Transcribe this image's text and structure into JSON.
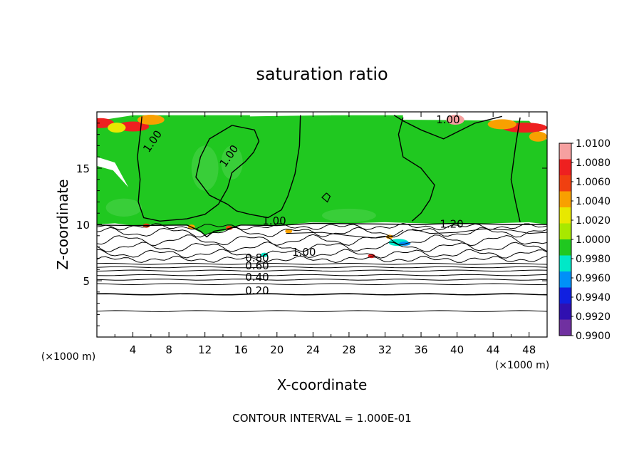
{
  "chart_data": {
    "type": "heatmap",
    "title": "saturation ratio",
    "xlabel": "X-coordinate",
    "ylabel": "Z-coordinate",
    "x_unit": "(×1000 m)",
    "z_unit": "(×1000 m)",
    "xlim": [
      0,
      50
    ],
    "ylim": [
      0,
      20
    ],
    "x_ticks": [
      4,
      8,
      12,
      16,
      20,
      24,
      28,
      32,
      36,
      40,
      44,
      48
    ],
    "y_ticks": [
      5,
      10,
      15
    ],
    "colorbar": {
      "levels": [
        "1.0100",
        "1.0080",
        "1.0060",
        "1.0040",
        "1.0020",
        "1.0000",
        "0.9980",
        "0.9960",
        "0.9940",
        "0.9920",
        "0.9900"
      ],
      "colors": [
        "#f6a0a0",
        "#ee2020",
        "#f04010",
        "#f8a000",
        "#e8e800",
        "#a8e800",
        "#20c820",
        "#00e8c8",
        "#0090f8",
        "#1020e0",
        "#3010b0",
        "#7030a0"
      ]
    },
    "contour_labels": [
      {
        "text": "1.00",
        "x": 6.5,
        "z": 17.2
      },
      {
        "text": "1.00",
        "x": 15.0,
        "z": 15.9
      },
      {
        "text": "1.00",
        "x": 39.0,
        "z": 19.0
      },
      {
        "text": "1.00",
        "x": 19.7,
        "z": 10.0
      },
      {
        "text": "1.20",
        "x": 39.4,
        "z": 9.7
      },
      {
        "text": "1.00",
        "x": 23.0,
        "z": 7.2
      },
      {
        "text": "0.80",
        "x": 17.8,
        "z": 6.7
      },
      {
        "text": "0.60",
        "x": 17.8,
        "z": 6.0
      },
      {
        "text": "0.40",
        "x": 17.8,
        "z": 5.0
      },
      {
        "text": "0.20",
        "x": 17.8,
        "z": 3.8
      }
    ],
    "contour_interval": "CONTOUR INTERVAL = 1.000E-01"
  }
}
